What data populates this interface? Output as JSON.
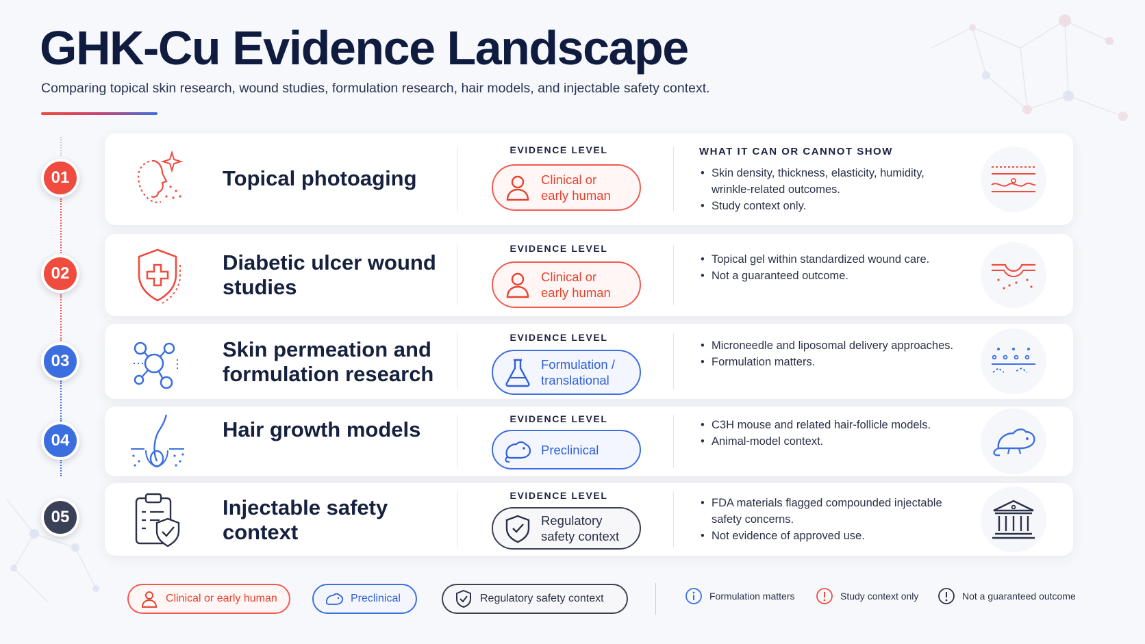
{
  "header": {
    "title": "GHK-Cu Evidence Landscape",
    "subtitle": "Comparing topical skin research, wound studies, formulation research, hair models, and injectable safety context."
  },
  "colors": {
    "clinical_red": "#ef4b3f",
    "preclinical_blue": "#3b6fe0",
    "regulatory_gray": "#4a5064",
    "title_navy": "#0f1c3f"
  },
  "rows": [
    {
      "number": "01",
      "title": "Topical photoaging",
      "icon": "face-sparkle-icon",
      "evidence_label": "EVIDENCE LEVEL",
      "badge_line1": "Clinical or",
      "badge_line2": "early human",
      "badge_icon": "person-icon",
      "section_heading": "WHAT IT CAN OR CANNOT SHOW",
      "bullets": [
        "Skin density, thickness, elasticity, humidity, wrinkle-related outcomes.",
        "Study context only."
      ],
      "right_icon": "skin-layers-icon"
    },
    {
      "number": "02",
      "title": "Diabetic ulcer wound studies",
      "icon": "shield-cross-icon",
      "evidence_label": "EVIDENCE LEVEL",
      "badge_line1": "Clinical or",
      "badge_line2": "early human",
      "badge_icon": "person-icon",
      "bullets": [
        "Topical gel within standardized wound care.",
        "Not a guaranteed outcome."
      ],
      "right_icon": "wound-skin-icon"
    },
    {
      "number": "03",
      "title": "Skin permeation and formulation research",
      "icon": "molecule-icon",
      "evidence_label": "EVIDENCE LEVEL",
      "badge_line1": "Formulation /",
      "badge_line2": "translational",
      "badge_icon": "flask-icon",
      "bullets": [
        "Microneedle and liposomal delivery approaches.",
        "Formulation matters."
      ],
      "right_icon": "permeation-layer-icon"
    },
    {
      "number": "04",
      "title": "Hair growth models",
      "icon": "hair-follicle-icon",
      "evidence_label": "EVIDENCE LEVEL",
      "badge_line1": "Preclinical",
      "badge_line2": "",
      "badge_icon": "mouse-icon",
      "bullets": [
        "C3H mouse and related hair-follicle models.",
        "Animal-model context."
      ],
      "right_icon": "mouse-icon"
    },
    {
      "number": "05",
      "title": "Injectable safety context",
      "icon": "clipboard-shield-icon",
      "evidence_label": "EVIDENCE LEVEL",
      "badge_line1": "Regulatory",
      "badge_line2": "safety context",
      "badge_icon": "shield-check-icon",
      "bullets": [
        "FDA materials flagged compounded injectable safety concerns.",
        "Not evidence of approved use."
      ],
      "right_icon": "government-building-icon"
    }
  ],
  "legend": {
    "clinical": "Clinical or early human",
    "preclinical": "Preclinical",
    "regulatory": "Regulatory safety context",
    "note_formulation": "Formulation matters",
    "note_study": "Study context only",
    "note_guarantee": "Not a guaranteed outcome"
  }
}
